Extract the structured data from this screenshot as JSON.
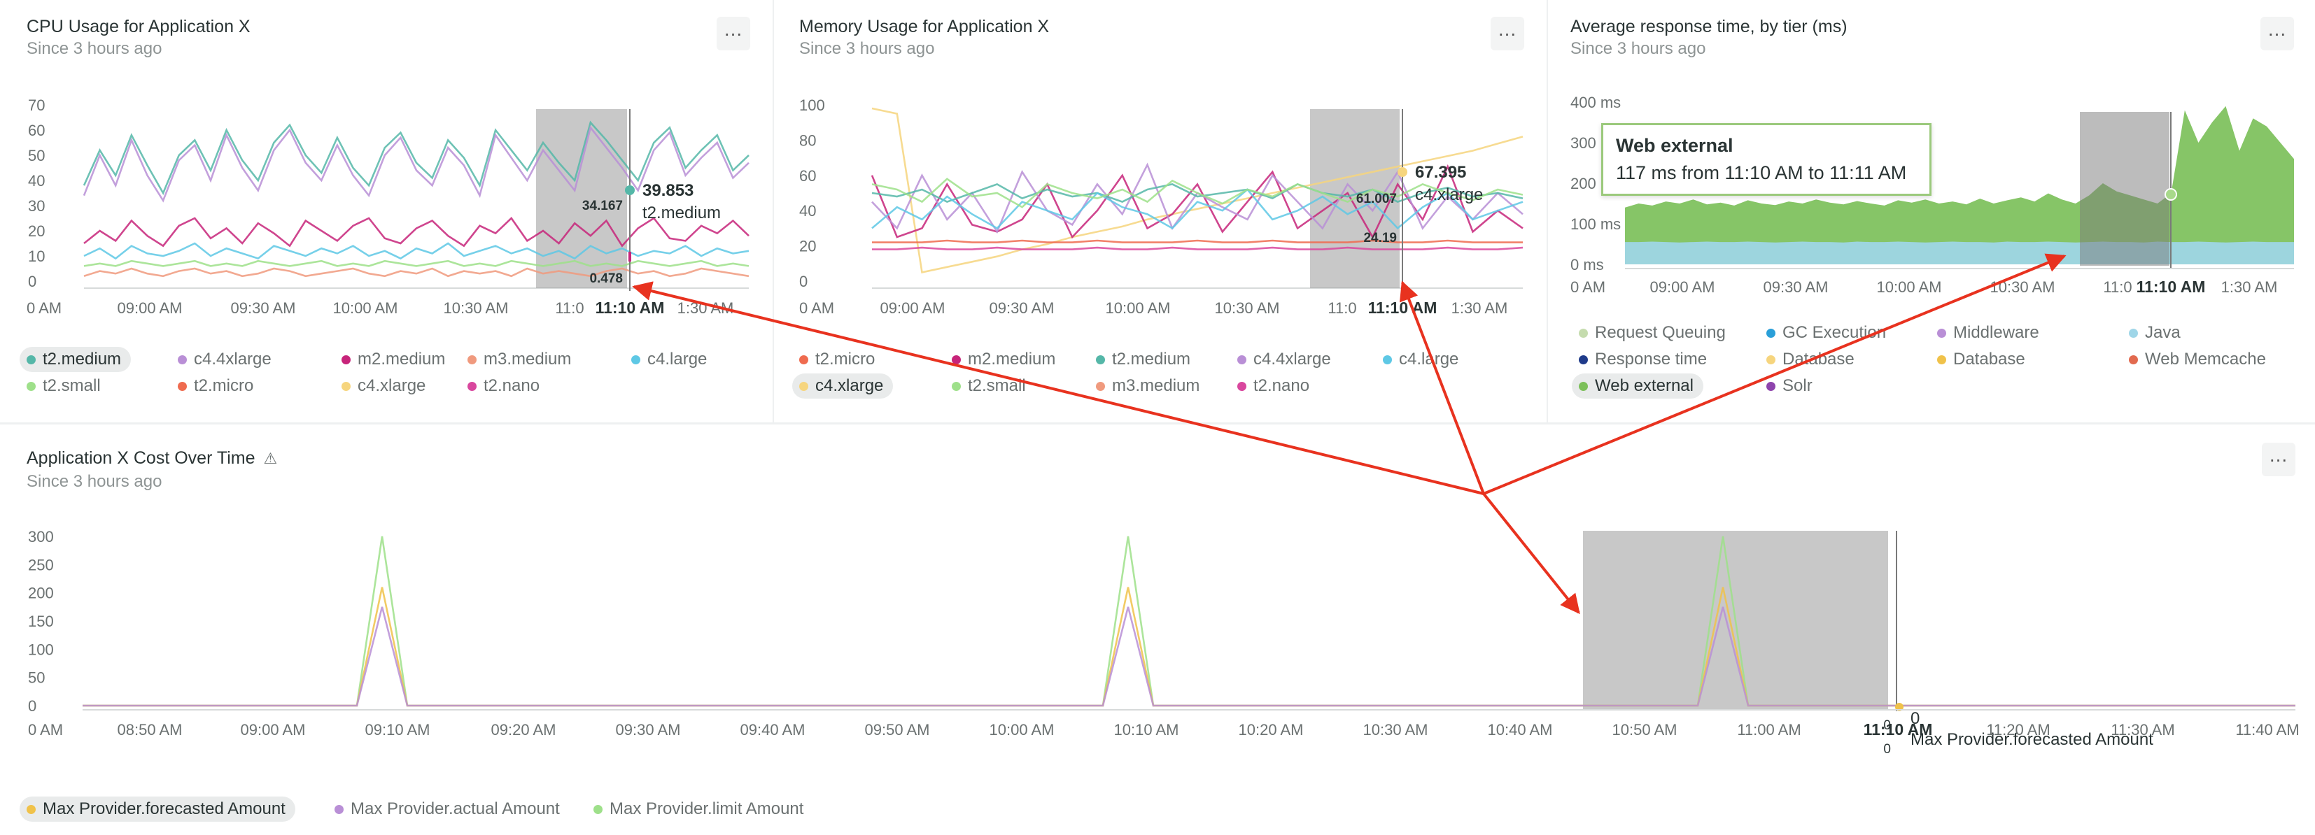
{
  "panels": {
    "cpu": {
      "title": "CPU Usage for Application X",
      "subtitle": "Since 3 hours ago",
      "menu_label": "...",
      "legend": [
        {
          "label": "t2.medium",
          "color": "#55b7a8",
          "selected": true
        },
        {
          "label": "c4.4xlarge",
          "color": "#b98fd6"
        },
        {
          "label": "m2.medium",
          "color": "#c7247a"
        },
        {
          "label": "m3.medium",
          "color": "#f09a7e"
        },
        {
          "label": "c4.large",
          "color": "#5ec8e5"
        },
        {
          "label": "t2.small",
          "color": "#9ee08a"
        },
        {
          "label": "t2.micro",
          "color": "#ef6b4f"
        },
        {
          "label": "c4.xlarge",
          "color": "#f6d57e"
        },
        {
          "label": "t2.nano",
          "color": "#d9479e"
        }
      ],
      "hover": {
        "time": "11:10 AM",
        "value": "39.853",
        "series": "t2.medium",
        "value2": "34.167",
        "value3": "0.478"
      }
    },
    "memory": {
      "title": "Memory Usage for Application X",
      "subtitle": "Since 3 hours ago",
      "menu_label": "...",
      "legend": [
        {
          "label": "t2.micro",
          "color": "#ef6b4f"
        },
        {
          "label": "m2.medium",
          "color": "#c7247a"
        },
        {
          "label": "t2.medium",
          "color": "#55b7a8"
        },
        {
          "label": "c4.4xlarge",
          "color": "#b98fd6"
        },
        {
          "label": "c4.large",
          "color": "#5ec8e5"
        },
        {
          "label": "c4.xlarge",
          "color": "#f6d57e",
          "selected": true
        },
        {
          "label": "t2.small",
          "color": "#9ee08a"
        },
        {
          "label": "m3.medium",
          "color": "#f09a7e"
        },
        {
          "label": "t2.nano",
          "color": "#d9479e"
        }
      ],
      "hover": {
        "time": "11:10 AM",
        "value": "67.395",
        "series": "c4.xlarge",
        "value2": "61.007",
        "value3": "24.19"
      }
    },
    "response": {
      "title": "Average response time, by tier (ms)",
      "subtitle": "Since 3 hours ago",
      "menu_label": "...",
      "legend": [
        {
          "label": "Request Queuing",
          "color": "#c5dcae"
        },
        {
          "label": "GC Execution",
          "color": "#2a9fd8"
        },
        {
          "label": "Middleware",
          "color": "#b98fd6"
        },
        {
          "label": "Java",
          "color": "#9fd6e8"
        },
        {
          "label": "Response time",
          "color": "#1f3b8a"
        },
        {
          "label": "Database",
          "color": "#f6d57e"
        },
        {
          "label": "Database",
          "color": "#f0c24a"
        },
        {
          "label": "Web Memcache",
          "color": "#e26a4f"
        },
        {
          "label": "Web external",
          "color": "#7cc05a",
          "selected": true
        },
        {
          "label": "Solr",
          "color": "#8e44ad"
        }
      ],
      "tooltip": {
        "title": "Web external",
        "body": "117 ms from 11:10 AM to 11:11 AM"
      },
      "hover": {
        "time": "11:10 AM"
      }
    },
    "cost": {
      "title": "Application X Cost Over Time",
      "warning_icon": "warning-icon",
      "subtitle": "Since 3 hours ago",
      "menu_label": "...",
      "legend": [
        {
          "label": "Max Provider.forecasted Amount",
          "color": "#f0c24a",
          "selected": true
        },
        {
          "label": "Max Provider.actual Amount",
          "color": "#b98fd6"
        },
        {
          "label": "Max Provider.limit Amount",
          "color": "#9ee08a"
        }
      ],
      "hover": {
        "time": "11:10 AM",
        "value": "0",
        "series": "Max Provider.forecasted Amount",
        "value2": "0",
        "value3": "0"
      }
    }
  },
  "chart_data": [
    {
      "type": "line",
      "ylim": [
        0,
        70
      ],
      "yticks": [
        "70",
        "60",
        "50",
        "40",
        "30",
        "20",
        "10",
        "0"
      ],
      "xticks": [
        "0 AM",
        "09:00 AM",
        "09:30 AM",
        "10:00 AM",
        "10:30 AM",
        "11:0",
        "11:10 AM",
        "1:30 AM"
      ],
      "series": [
        {
          "name": "t2.medium",
          "color": "#55b7a8",
          "values": [
            38,
            52,
            42,
            58,
            46,
            35,
            50,
            56,
            44,
            60,
            48,
            40,
            55,
            62,
            50,
            43,
            57,
            45,
            38,
            53,
            59,
            47,
            41,
            56,
            49,
            38,
            60,
            52,
            44,
            55,
            47,
            40,
            63,
            56,
            48,
            40,
            55,
            61,
            45,
            52,
            58,
            44,
            50
          ]
        },
        {
          "name": "c4.4xlarge",
          "color": "#b98fd6",
          "values": [
            34,
            50,
            38,
            56,
            42,
            32,
            48,
            54,
            40,
            58,
            45,
            36,
            52,
            60,
            47,
            40,
            54,
            42,
            34,
            50,
            57,
            44,
            38,
            53,
            46,
            34,
            58,
            49,
            40,
            52,
            44,
            36,
            61,
            53,
            45,
            36,
            52,
            59,
            42,
            49,
            55,
            41,
            47
          ]
        },
        {
          "name": "m2.medium",
          "color": "#c7247a",
          "values": [
            15,
            20,
            16,
            24,
            18,
            14,
            22,
            25,
            17,
            21,
            15,
            23,
            19,
            14,
            24,
            20,
            16,
            22,
            25,
            17,
            15,
            21,
            24,
            18,
            14,
            22,
            19,
            25,
            16,
            20,
            15,
            23,
            18,
            24,
            14,
            21,
            25,
            17,
            16,
            22,
            19,
            24,
            18
          ]
        },
        {
          "name": "c4.large",
          "color": "#5ec8e5",
          "values": [
            10,
            13,
            9,
            14,
            11,
            10,
            12,
            15,
            10,
            13,
            11,
            9,
            14,
            12,
            10,
            13,
            11,
            14,
            10,
            12,
            9,
            13,
            11,
            15,
            10,
            12,
            14,
            11,
            13,
            10,
            12,
            9,
            14,
            11,
            13,
            10,
            12,
            11,
            14,
            10,
            13,
            11,
            12
          ]
        },
        {
          "name": "m3.medium",
          "color": "#f09a7e",
          "values": [
            2,
            4,
            3,
            5,
            3,
            2,
            4,
            5,
            3,
            4,
            2,
            3,
            5,
            4,
            2,
            3,
            4,
            5,
            3,
            2,
            4,
            3,
            5,
            2,
            4,
            3,
            4,
            2,
            5,
            3,
            4,
            3,
            2,
            4,
            5,
            3,
            4,
            2,
            3,
            5,
            4,
            3,
            2
          ]
        },
        {
          "name": "t2.small",
          "color": "#9ee08a",
          "values": [
            6,
            7,
            6,
            8,
            7,
            6,
            7,
            8,
            6,
            7,
            6,
            8,
            7,
            6,
            7,
            8,
            6,
            7,
            6,
            8,
            7,
            6,
            7,
            8,
            6,
            7,
            6,
            8,
            7,
            6,
            7,
            8,
            6,
            7,
            6,
            8,
            7,
            6,
            7,
            8,
            6,
            7,
            6
          ]
        }
      ]
    },
    {
      "type": "line",
      "ylim": [
        0,
        100
      ],
      "yticks": [
        "100",
        "80",
        "60",
        "40",
        "20",
        "0"
      ],
      "xticks": [
        "0 AM",
        "09:00 AM",
        "09:30 AM",
        "10:00 AM",
        "10:30 AM",
        "11:0",
        "11:10 AM",
        "1:30 AM"
      ],
      "series": [
        {
          "name": "c4.xlarge",
          "color": "#f6d57e",
          "values": [
            98,
            95,
            5,
            8,
            11,
            14,
            18,
            21,
            25,
            28,
            31,
            35,
            38,
            41,
            44,
            47,
            50,
            53,
            56,
            59,
            62,
            65,
            68,
            71,
            74,
            78,
            82
          ]
        },
        {
          "name": "m2.medium",
          "color": "#c7247a",
          "values": [
            60,
            25,
            30,
            55,
            32,
            28,
            35,
            55,
            25,
            40,
            60,
            30,
            38,
            55,
            28,
            45,
            62,
            30,
            40,
            50,
            25,
            55,
            35,
            65,
            28,
            40,
            30
          ]
        },
        {
          "name": "c4.4xlarge",
          "color": "#b98fd6",
          "values": [
            45,
            30,
            60,
            35,
            50,
            28,
            62,
            40,
            32,
            55,
            38,
            66,
            30,
            50,
            42,
            35,
            60,
            45,
            30,
            55,
            40,
            62,
            30,
            48,
            35,
            50,
            38
          ]
        },
        {
          "name": "t2.medium",
          "color": "#55b7a8",
          "values": [
            50,
            48,
            52,
            45,
            50,
            55,
            47,
            52,
            48,
            50,
            45,
            52,
            55,
            48,
            50,
            52,
            47,
            55,
            50,
            48,
            52,
            45,
            50,
            53,
            48,
            50,
            47
          ]
        },
        {
          "name": "c4.large",
          "color": "#5ec8e5",
          "values": [
            30,
            42,
            35,
            48,
            38,
            30,
            45,
            40,
            35,
            50,
            42,
            38,
            30,
            45,
            40,
            52,
            35,
            40,
            48,
            38,
            45,
            30,
            42,
            50,
            35,
            40,
            45
          ]
        },
        {
          "name": "t2.small",
          "color": "#9ee08a",
          "values": [
            55,
            52,
            45,
            58,
            48,
            50,
            42,
            55,
            50,
            47,
            52,
            45,
            57,
            50,
            44,
            52,
            48,
            55,
            50,
            45,
            52,
            48,
            55,
            50,
            46,
            52,
            49
          ]
        },
        {
          "name": "t2.micro",
          "color": "#ef6b4f",
          "values": [
            22,
            22,
            22,
            23,
            22,
            22,
            23,
            22,
            22,
            23,
            22,
            22,
            22,
            23,
            22,
            22,
            23,
            22,
            22,
            22,
            23,
            22,
            22,
            23,
            22,
            22,
            22
          ]
        },
        {
          "name": "t2.nano",
          "color": "#d9479e",
          "values": [
            18,
            18,
            19,
            18,
            18,
            19,
            18,
            18,
            18,
            19,
            18,
            18,
            19,
            18,
            18,
            18,
            19,
            18,
            18,
            19,
            18,
            18,
            18,
            19,
            18,
            18,
            19
          ]
        }
      ]
    },
    {
      "type": "area",
      "ylim": [
        0,
        400
      ],
      "yticks": [
        "400 ms",
        "300",
        "200",
        "100 ms",
        "0 ms"
      ],
      "xticks": [
        "0 AM",
        "09:00 AM",
        "09:30 AM",
        "10:00 AM",
        "10:30 AM",
        "11:0",
        "11:10 AM",
        "1:30 AM"
      ],
      "series": [
        {
          "name": "Web external",
          "color": "#7cc05a",
          "values": [
            140,
            150,
            145,
            155,
            150,
            160,
            148,
            152,
            145,
            158,
            150,
            146,
            155,
            150,
            160,
            152,
            148,
            156,
            150,
            145,
            158,
            152,
            160,
            150,
            155,
            148,
            162,
            150,
            158,
            165,
            155,
            175,
            160,
            150,
            170,
            200,
            180,
            170,
            160,
            150,
            175,
            380,
            300,
            350,
            390,
            280,
            360,
            340,
            300,
            260
          ]
        },
        {
          "name": "Java",
          "color": "#9fd6e8",
          "values": [
            55,
            55,
            56,
            55,
            54,
            55,
            56,
            55,
            55,
            56,
            55,
            54,
            55,
            56,
            55,
            55,
            54,
            56,
            55,
            55,
            56,
            55,
            54,
            55,
            56,
            55,
            55,
            54,
            56,
            55,
            55,
            56,
            55,
            54,
            55,
            56,
            55,
            55,
            54,
            56,
            55,
            55,
            56,
            55,
            54,
            55,
            56,
            55,
            55,
            55
          ]
        }
      ]
    },
    {
      "type": "line",
      "ylim": [
        0,
        300
      ],
      "yticks": [
        "300",
        "250",
        "200",
        "150",
        "100",
        "50",
        "0"
      ],
      "xticks": [
        "0 AM",
        "08:50 AM",
        "09:00 AM",
        "09:10 AM",
        "09:20 AM",
        "09:30 AM",
        "09:40 AM",
        "09:50 AM",
        "10:00 AM",
        "10:10 AM",
        "10:20 AM",
        "10:30 AM",
        "10:40 AM",
        "10:50 AM",
        "11:00 AM",
        "11:10 AM",
        "11:20 AM",
        "11:30 AM",
        "11:40 AM"
      ],
      "series": [
        {
          "name": "Max Provider.limit Amount",
          "color": "#9ee08a",
          "peaks": [
            300,
            300,
            300
          ]
        },
        {
          "name": "Max Provider.forecasted Amount",
          "color": "#f0c24a",
          "peaks": [
            210,
            210,
            210
          ]
        },
        {
          "name": "Max Provider.actual Amount",
          "color": "#b98fd6",
          "peaks": [
            175,
            175,
            175
          ]
        }
      ]
    }
  ]
}
